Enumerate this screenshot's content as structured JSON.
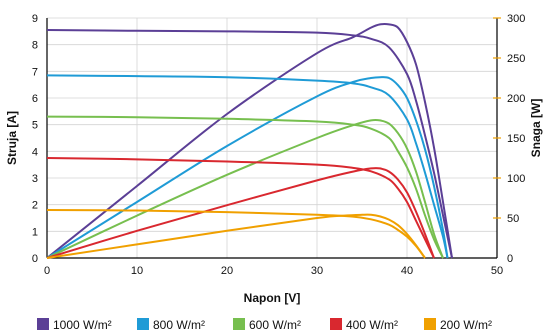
{
  "chart_data": {
    "type": "line",
    "title": "",
    "xlabel": "Napon [V]",
    "ylabel_left": "Struja [A]",
    "ylabel_right": "Snaga [W]",
    "xlim": [
      0,
      50
    ],
    "ylim_left": [
      0,
      9
    ],
    "ylim_right": [
      0,
      300
    ],
    "x_ticks": [
      "0",
      "10",
      "20",
      "30",
      "40",
      "50"
    ],
    "y_ticks_left": [
      "0",
      "1",
      "2",
      "3",
      "4",
      "5",
      "6",
      "7",
      "8",
      "9"
    ],
    "y_ticks_right": [
      "0",
      "50",
      "100",
      "150",
      "200",
      "250",
      "300"
    ],
    "grid": true,
    "legend_position": "bottom",
    "series": [
      {
        "name": "1000 W/m²",
        "color": "#5b3f96",
        "current_curve": {
          "x": [
            0,
            10,
            20,
            30,
            34,
            36,
            38,
            40,
            41,
            42,
            43,
            44,
            44.5,
            45
          ],
          "y": [
            8.55,
            8.52,
            8.5,
            8.45,
            8.35,
            8.22,
            7.9,
            6.9,
            5.9,
            4.6,
            3.2,
            1.6,
            0.8,
            0
          ]
        },
        "power_curve": {
          "x": [
            0,
            10,
            20,
            30,
            34,
            36,
            37,
            38,
            39,
            40,
            41,
            42,
            43,
            44,
            45
          ],
          "y": [
            0,
            90,
            180,
            256,
            276,
            288,
            292,
            292,
            288,
            270,
            242,
            195,
            138,
            70,
            0
          ]
        }
      },
      {
        "name": "800 W/m²",
        "color": "#1f9bd6",
        "current_curve": {
          "x": [
            0,
            10,
            20,
            30,
            34,
            36,
            38,
            40,
            41,
            42,
            43,
            44,
            44.5
          ],
          "y": [
            6.85,
            6.82,
            6.78,
            6.65,
            6.55,
            6.4,
            6.1,
            5.2,
            4.3,
            3.2,
            2.0,
            0.8,
            0
          ]
        },
        "power_curve": {
          "x": [
            0,
            10,
            20,
            30,
            34,
            36,
            37,
            38,
            39,
            40,
            41,
            42,
            43,
            44,
            44.5
          ],
          "y": [
            0,
            70,
            140,
            202,
            220,
            225,
            226,
            225,
            216,
            200,
            172,
            136,
            90,
            35,
            0
          ]
        }
      },
      {
        "name": "600 W/m²",
        "color": "#77bf4f",
        "current_curve": {
          "x": [
            0,
            10,
            20,
            30,
            34,
            36,
            38,
            39,
            40,
            41,
            42,
            43,
            44
          ],
          "y": [
            5.3,
            5.28,
            5.22,
            5.12,
            5.0,
            4.85,
            4.5,
            4.0,
            3.4,
            2.6,
            1.6,
            0.7,
            0
          ]
        },
        "power_curve": {
          "x": [
            0,
            10,
            20,
            30,
            34,
            36,
            37,
            38,
            39,
            40,
            41,
            42,
            43,
            44
          ],
          "y": [
            0,
            53,
            104,
            150,
            166,
            172,
            172,
            168,
            156,
            137,
            108,
            70,
            30,
            0
          ]
        }
      },
      {
        "name": "400 W/m²",
        "color": "#d9282f",
        "current_curve": {
          "x": [
            0,
            10,
            20,
            30,
            34,
            36,
            38,
            39,
            40,
            41,
            42,
            43
          ],
          "y": [
            3.75,
            3.7,
            3.62,
            3.5,
            3.38,
            3.25,
            2.95,
            2.6,
            2.1,
            1.4,
            0.7,
            0
          ]
        },
        "power_curve": {
          "x": [
            0,
            10,
            20,
            30,
            34,
            36,
            37,
            38,
            39,
            40,
            41,
            42,
            43
          ],
          "y": [
            0,
            34,
            66,
            97,
            108,
            112,
            112,
            108,
            98,
            82,
            58,
            30,
            0
          ]
        }
      },
      {
        "name": "200 W/m²",
        "color": "#f0a000",
        "current_curve": {
          "x": [
            0,
            10,
            20,
            30,
            34,
            36,
            38,
            39,
            40,
            41,
            42
          ],
          "y": [
            1.8,
            1.78,
            1.72,
            1.62,
            1.55,
            1.45,
            1.25,
            1.05,
            0.8,
            0.45,
            0
          ]
        },
        "power_curve": {
          "x": [
            0,
            10,
            20,
            30,
            33,
            35,
            36,
            37,
            38,
            39,
            40,
            41,
            42
          ],
          "y": [
            0,
            17,
            34,
            50,
            53,
            54,
            54,
            52,
            48,
            41,
            30,
            16,
            0
          ]
        }
      }
    ]
  }
}
